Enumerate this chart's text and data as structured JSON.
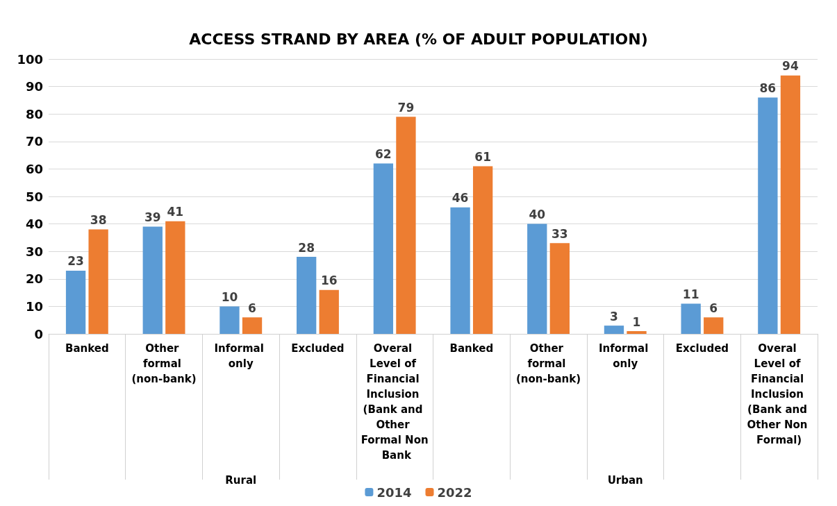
{
  "chart_data": {
    "type": "bar",
    "title": "ACCESS STRAND BY AREA (% OF ADULT POPULATION)",
    "categories": [
      "Banked",
      "Other formal (non-bank)",
      "Informal only",
      "Excluded",
      "Overal Level of Financial Inclusion (Bank and Other Formal Non Bank",
      "Banked",
      "Other formal (non-bank)",
      "Informal only",
      "Excluded",
      "Overal Level of Financial Inclusion (Bank and Other Non Formal)"
    ],
    "series": [
      {
        "name": "2014",
        "color": "#5b9bd5",
        "values": [
          23,
          39,
          10,
          28,
          62,
          46,
          40,
          3,
          11,
          86
        ]
      },
      {
        "name": "2022",
        "color": "#ed7d31",
        "values": [
          38,
          41,
          6,
          16,
          79,
          61,
          33,
          1,
          6,
          94
        ]
      }
    ],
    "annotations": [
      "Rural",
      "Urban"
    ],
    "ylim": [
      0,
      100
    ],
    "yticks": [
      0,
      10,
      20,
      30,
      40,
      50,
      60,
      70,
      80,
      90,
      100
    ],
    "grid": "y",
    "legend": "bottom",
    "data_labels": true
  }
}
